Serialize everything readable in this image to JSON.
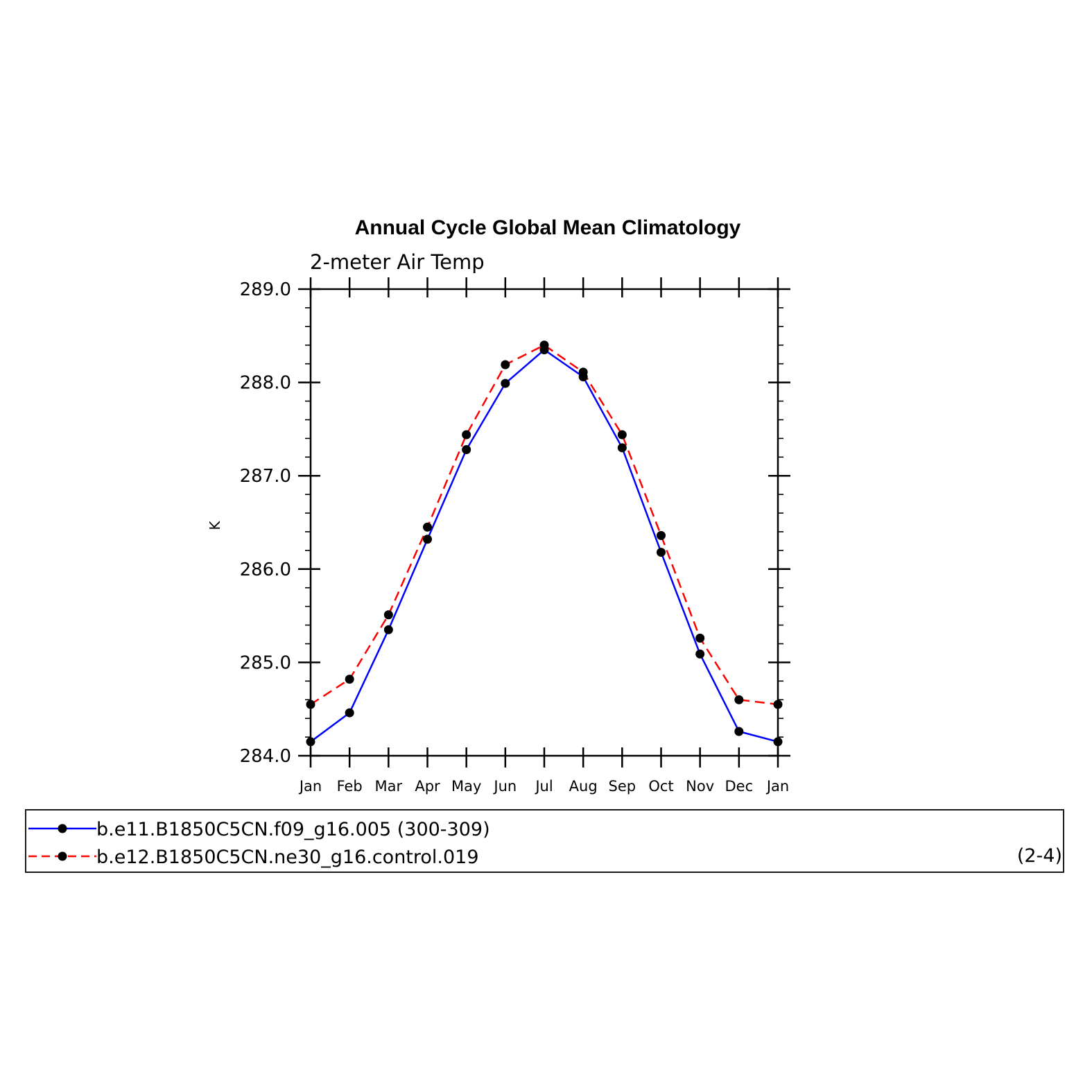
{
  "chart_data": {
    "type": "line",
    "title": "Annual Cycle Global Mean Climatology",
    "subtitle": "2-meter Air Temp",
    "ylabel": "K",
    "xlabel": "",
    "categories": [
      "Jan",
      "Feb",
      "Mar",
      "Apr",
      "May",
      "Jun",
      "Jul",
      "Aug",
      "Sep",
      "Oct",
      "Nov",
      "Dec",
      "Jan"
    ],
    "ylim": [
      284.0,
      289.0
    ],
    "yticks": [
      "284.0",
      "285.0",
      "286.0",
      "287.0",
      "288.0",
      "289.0"
    ],
    "grid": false,
    "legend_position": "bottom",
    "series": [
      {
        "name": "b.e11.B1850C5CN.f09_g16.005 (300-309)",
        "color": "#0000ff",
        "style": "solid",
        "values": [
          284.15,
          284.46,
          285.35,
          286.32,
          287.28,
          287.99,
          288.35,
          288.06,
          287.3,
          286.18,
          285.09,
          284.26,
          284.15
        ]
      },
      {
        "name": "b.e12.B1850C5CN.ne30_g16.control.019",
        "color": "#ff0000",
        "style": "dashed",
        "values": [
          284.55,
          284.82,
          285.51,
          286.45,
          287.44,
          288.19,
          288.4,
          288.11,
          287.44,
          286.36,
          285.26,
          284.6,
          284.55
        ]
      }
    ],
    "annotation": "(2-4)"
  }
}
